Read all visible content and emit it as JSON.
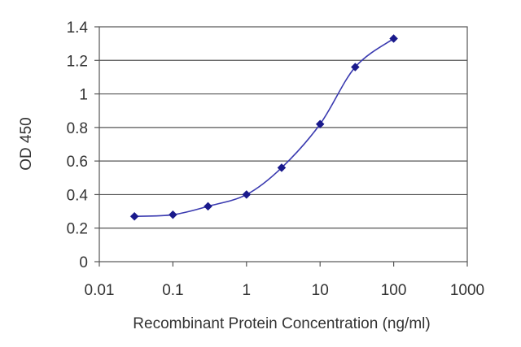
{
  "chart_data": {
    "type": "line",
    "title": "",
    "xlabel": "Recombinant Protein Concentration (ng/ml)",
    "ylabel": "OD 450",
    "x_scale": "log",
    "xlim": [
      0.01,
      1000
    ],
    "ylim": [
      0,
      1.4
    ],
    "x_ticks": [
      "0.01",
      "0.1",
      "1",
      "10",
      "100",
      "1000"
    ],
    "y_ticks": [
      "0",
      "0.2",
      "0.4",
      "0.6",
      "0.8",
      "1",
      "1.2",
      "1.4"
    ],
    "grid": "horizontal",
    "legend": "none",
    "series": [
      {
        "color": "#1a1a8c",
        "marker": "diamond",
        "x": [
          0.03,
          0.1,
          0.3,
          1,
          3,
          10,
          30,
          100
        ],
        "y": [
          0.27,
          0.28,
          0.33,
          0.4,
          0.56,
          0.82,
          1.16,
          1.33
        ]
      }
    ]
  }
}
